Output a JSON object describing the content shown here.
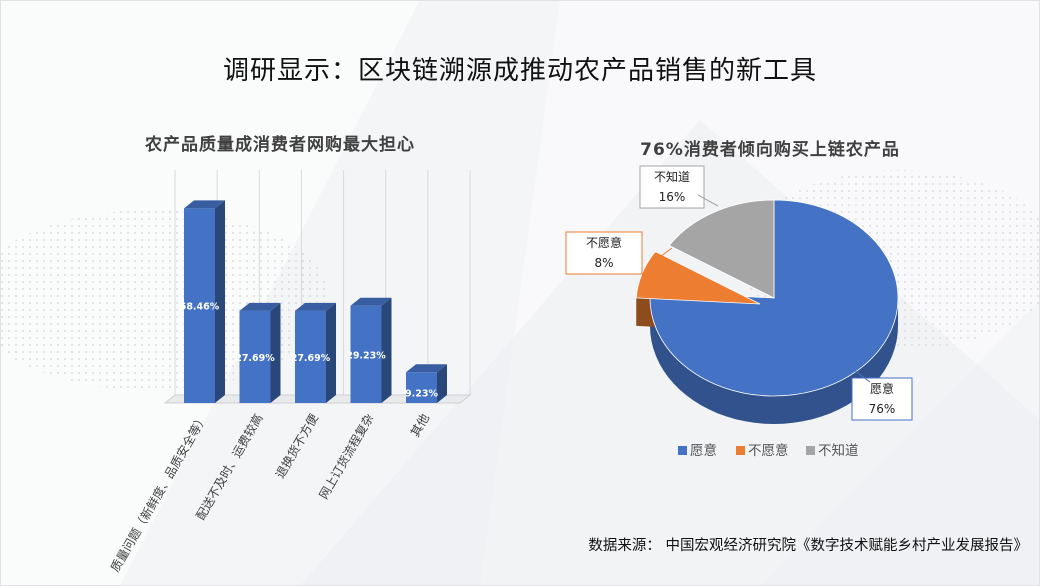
{
  "main_title": "调研显示：区块链溯源成推动农产品销售的新工具",
  "source": "数据来源：  中国宏观经济研究院《数字技术赋能乡村产业发展报告》",
  "colors": {
    "bar": "#4472c4",
    "pie_yes": "#4472c4",
    "pie_no": "#ed7d31",
    "pie_unknown": "#a5a5a5"
  },
  "chart_data": [
    {
      "type": "bar",
      "title": "农产品质量成消费者网购最大担心",
      "categories": [
        "质量问题（新鲜度、品质安全等）",
        "配送不及时、运费较高",
        "退换货不方便",
        "网上订货流程复杂",
        "其他"
      ],
      "values": [
        58.46,
        27.69,
        27.69,
        29.23,
        9.23
      ],
      "value_labels": [
        "58.46%",
        "27.69%",
        "27.69%",
        "29.23%",
        "9.23%"
      ],
      "ylim": [
        0,
        70
      ],
      "grid": true
    },
    {
      "type": "pie",
      "title": "76%消费者倾向购买上链农产品",
      "labels": [
        "愿意",
        "不愿意",
        "不知道"
      ],
      "values": [
        76,
        8,
        16
      ],
      "value_labels": [
        "76%",
        "8%",
        "16%"
      ],
      "legend_position": "bottom"
    }
  ]
}
